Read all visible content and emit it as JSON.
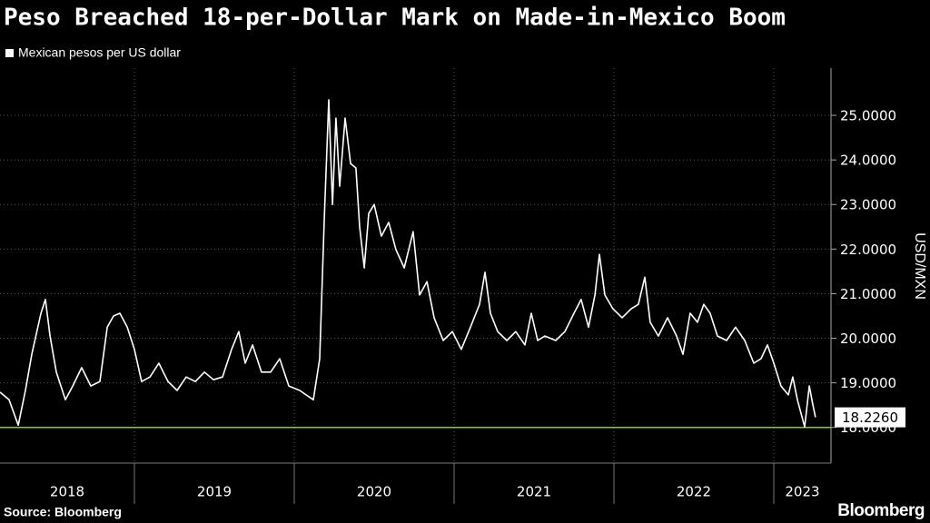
{
  "chart_data": {
    "type": "line",
    "title": "Peso Breached 18-per-Dollar Mark on Made-in-Mexico Boom",
    "y_axis_label": "USD/MXN",
    "source": "Source: Bloomberg",
    "brand": "Bloomberg",
    "x": [
      2018.159,
      2018.216,
      2018.273,
      2018.318,
      2018.358,
      2018.415,
      2018.443,
      2018.472,
      2018.511,
      2018.568,
      2018.614,
      2018.67,
      2018.727,
      2018.784,
      2018.83,
      2018.869,
      2018.909,
      2018.955,
      2019.0,
      2019.045,
      2019.097,
      2019.153,
      2019.21,
      2019.267,
      2019.324,
      2019.381,
      2019.438,
      2019.494,
      2019.551,
      2019.608,
      2019.653,
      2019.693,
      2019.739,
      2019.795,
      2019.852,
      2019.909,
      2019.966,
      2020.034,
      2020.119,
      2020.159,
      2020.188,
      2020.216,
      2020.239,
      2020.261,
      2020.284,
      2020.318,
      2020.352,
      2020.386,
      2020.409,
      2020.438,
      2020.466,
      2020.5,
      2020.545,
      2020.591,
      2020.636,
      2020.688,
      2020.744,
      2020.784,
      2020.83,
      2020.875,
      2020.932,
      2020.989,
      2021.045,
      2021.102,
      2021.159,
      2021.193,
      2021.227,
      2021.273,
      2021.33,
      2021.386,
      2021.443,
      2021.483,
      2021.523,
      2021.568,
      2021.636,
      2021.693,
      2021.75,
      2021.795,
      2021.841,
      2021.881,
      2021.909,
      2021.943,
      2021.994,
      2022.051,
      2022.108,
      2022.153,
      2022.193,
      2022.227,
      2022.278,
      2022.335,
      2022.392,
      2022.432,
      2022.477,
      2022.523,
      2022.562,
      2022.602,
      2022.648,
      2022.705,
      2022.761,
      2022.818,
      2022.875,
      2022.92,
      2022.96,
      2023.0,
      2023.045,
      2023.091,
      2023.119,
      2023.148,
      2023.193,
      2023.222,
      2023.244,
      2023.261
    ],
    "series": [
      {
        "name": "Mexican pesos per US dollar",
        "color": "#ffffff",
        "values": [
          18.79,
          18.62,
          18.05,
          18.83,
          19.64,
          20.56,
          20.87,
          20.05,
          19.24,
          18.62,
          18.93,
          19.34,
          18.93,
          19.03,
          20.25,
          20.5,
          20.56,
          20.25,
          19.75,
          19.03,
          19.13,
          19.44,
          19.03,
          18.83,
          19.13,
          19.03,
          19.24,
          19.07,
          19.13,
          19.75,
          20.15,
          19.44,
          19.85,
          19.24,
          19.24,
          19.54,
          18.93,
          18.83,
          18.62,
          19.54,
          22.7,
          25.35,
          23.0,
          24.94,
          23.41,
          24.94,
          23.92,
          23.82,
          22.5,
          21.58,
          22.8,
          23.0,
          22.29,
          22.6,
          21.99,
          21.58,
          22.39,
          20.97,
          21.27,
          20.46,
          19.95,
          20.15,
          19.75,
          20.25,
          20.76,
          21.48,
          20.56,
          20.15,
          19.95,
          20.15,
          19.85,
          20.56,
          19.95,
          20.05,
          19.95,
          20.15,
          20.56,
          20.87,
          20.25,
          20.97,
          21.88,
          20.97,
          20.66,
          20.46,
          20.66,
          20.76,
          21.37,
          20.36,
          20.05,
          20.46,
          20.05,
          19.64,
          20.56,
          20.36,
          20.76,
          20.56,
          20.05,
          19.95,
          20.25,
          19.95,
          19.44,
          19.54,
          19.85,
          19.44,
          18.93,
          18.73,
          19.13,
          18.62,
          18.01,
          18.93,
          18.52,
          18.226
        ]
      }
    ],
    "last_value_label": "18.2260",
    "reference_line": {
      "value": 18,
      "color": "#7ed321"
    },
    "xlim": [
      2018.159,
      2023.358
    ],
    "xticks": [
      2019,
      2020,
      2021,
      2022,
      2023
    ],
    "year_labels": [
      2018,
      2019,
      2020,
      2021,
      2022,
      2023
    ],
    "ylim": [
      17.2,
      26.06
    ],
    "yticks": [
      {
        "value": 18,
        "label": "18.0000"
      },
      {
        "value": 19,
        "label": "19.0000"
      },
      {
        "value": 20,
        "label": "20.0000"
      },
      {
        "value": 21,
        "label": "21.0000"
      },
      {
        "value": 22,
        "label": "22.0000"
      },
      {
        "value": 23,
        "label": "23.0000"
      },
      {
        "value": 24,
        "label": "24.0000"
      },
      {
        "value": 25,
        "label": "25.0000"
      }
    ],
    "grid": true
  }
}
